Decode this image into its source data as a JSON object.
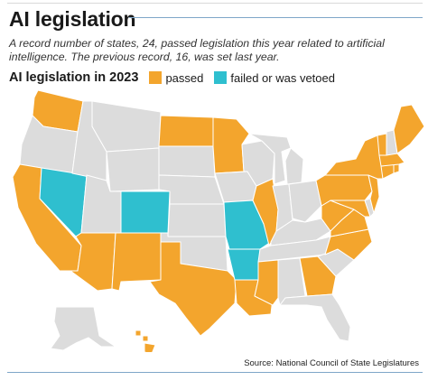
{
  "header": {
    "title": "AI legislation",
    "subtitle": "A record number of states, 24, passed legislation this year related to artificial intelligence. The previous record, 16, was set last year."
  },
  "map": {
    "heading": "AI legislation in 2023",
    "legend": [
      {
        "key": "passed",
        "label": "passed",
        "color": "#f3a52d"
      },
      {
        "key": "failed",
        "label": "failed or was vetoed",
        "color": "#2fbfcf"
      }
    ],
    "colors": {
      "passed": "#f3a52d",
      "failed": "#2fbfcf",
      "none": "#dcdcdc"
    },
    "states": [
      {
        "abbr": "WA",
        "status": "passed"
      },
      {
        "abbr": "OR",
        "status": "none"
      },
      {
        "abbr": "CA",
        "status": "passed"
      },
      {
        "abbr": "NV",
        "status": "failed"
      },
      {
        "abbr": "ID",
        "status": "none"
      },
      {
        "abbr": "MT",
        "status": "none"
      },
      {
        "abbr": "WY",
        "status": "none"
      },
      {
        "abbr": "UT",
        "status": "none"
      },
      {
        "abbr": "CO",
        "status": "failed"
      },
      {
        "abbr": "AZ",
        "status": "passed"
      },
      {
        "abbr": "NM",
        "status": "passed"
      },
      {
        "abbr": "ND",
        "status": "passed"
      },
      {
        "abbr": "SD",
        "status": "none"
      },
      {
        "abbr": "NE",
        "status": "none"
      },
      {
        "abbr": "KS",
        "status": "none"
      },
      {
        "abbr": "OK",
        "status": "none"
      },
      {
        "abbr": "TX",
        "status": "passed"
      },
      {
        "abbr": "MN",
        "status": "passed"
      },
      {
        "abbr": "IA",
        "status": "none"
      },
      {
        "abbr": "MO",
        "status": "failed"
      },
      {
        "abbr": "AR",
        "status": "failed"
      },
      {
        "abbr": "LA",
        "status": "passed"
      },
      {
        "abbr": "WI",
        "status": "none"
      },
      {
        "abbr": "IL",
        "status": "passed"
      },
      {
        "abbr": "MI",
        "status": "none"
      },
      {
        "abbr": "IN",
        "status": "none"
      },
      {
        "abbr": "OH",
        "status": "none"
      },
      {
        "abbr": "KY",
        "status": "none"
      },
      {
        "abbr": "TN",
        "status": "none"
      },
      {
        "abbr": "MS",
        "status": "passed"
      },
      {
        "abbr": "AL",
        "status": "none"
      },
      {
        "abbr": "GA",
        "status": "passed"
      },
      {
        "abbr": "FL",
        "status": "none"
      },
      {
        "abbr": "SC",
        "status": "none"
      },
      {
        "abbr": "NC",
        "status": "passed"
      },
      {
        "abbr": "VA",
        "status": "passed"
      },
      {
        "abbr": "WV",
        "status": "passed"
      },
      {
        "abbr": "PA",
        "status": "passed"
      },
      {
        "abbr": "NY",
        "status": "passed"
      },
      {
        "abbr": "NJ",
        "status": "passed"
      },
      {
        "abbr": "MD",
        "status": "passed"
      },
      {
        "abbr": "DE",
        "status": "none"
      },
      {
        "abbr": "CT",
        "status": "passed"
      },
      {
        "abbr": "RI",
        "status": "passed"
      },
      {
        "abbr": "MA",
        "status": "passed"
      },
      {
        "abbr": "VT",
        "status": "passed"
      },
      {
        "abbr": "NH",
        "status": "none"
      },
      {
        "abbr": "ME",
        "status": "passed"
      },
      {
        "abbr": "AK",
        "status": "none"
      },
      {
        "abbr": "HI",
        "status": "passed"
      }
    ]
  },
  "source": "Source: National Council of State Legislatures"
}
